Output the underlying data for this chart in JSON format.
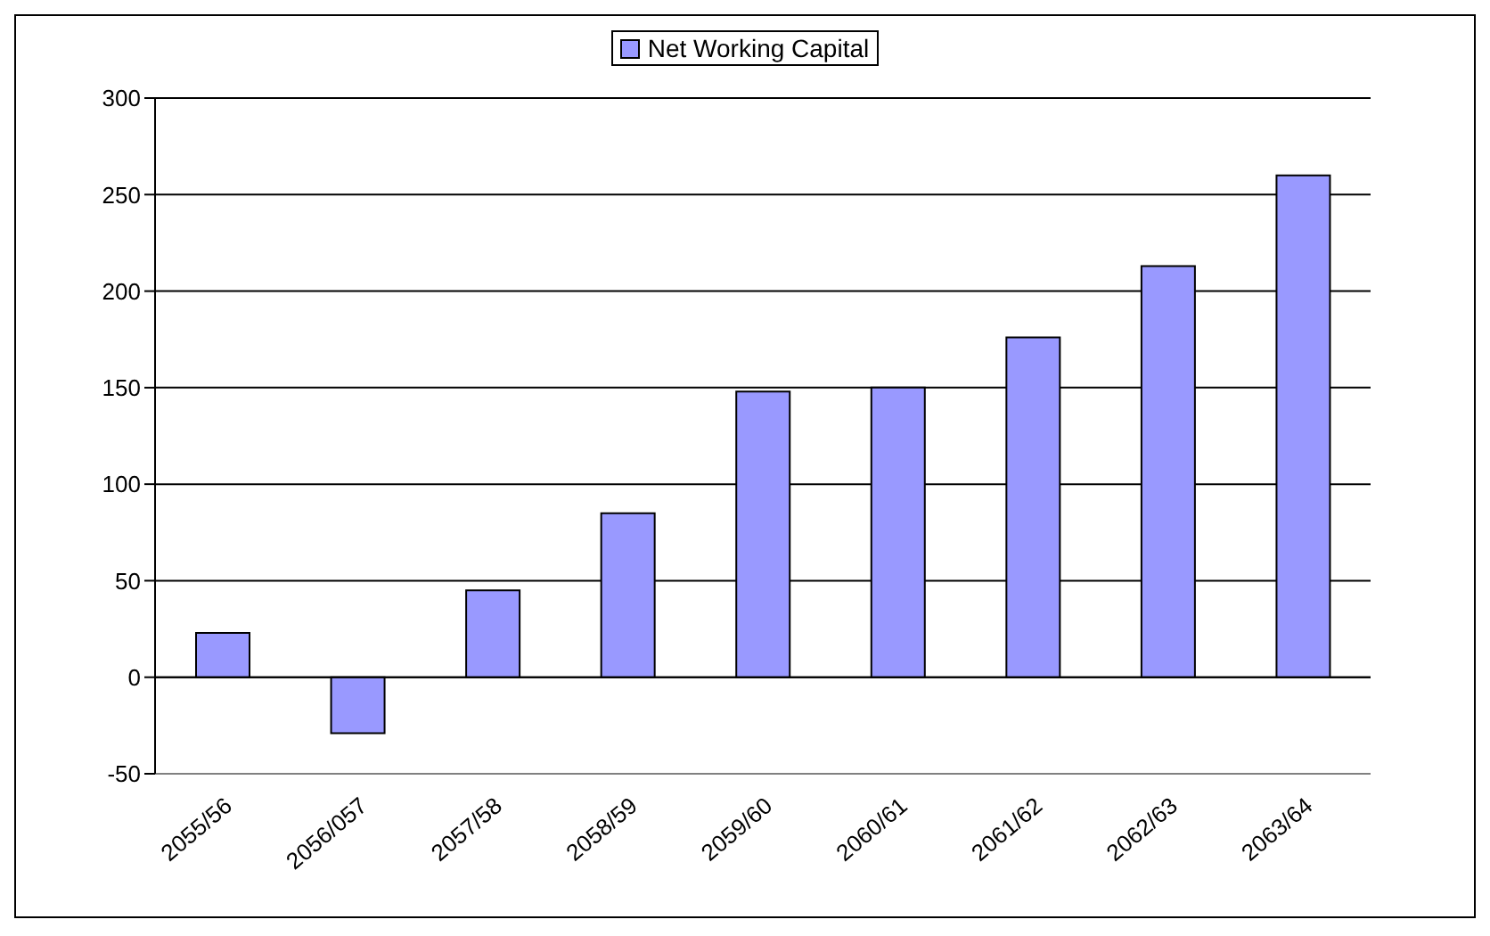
{
  "chart_data": {
    "type": "bar",
    "categories": [
      "2055/56",
      "2056/057",
      "2057/58",
      "2058/59",
      "2059/60",
      "2060/61",
      "2061/62",
      "2062/63",
      "2063/64"
    ],
    "series": [
      {
        "name": "Net Working Capital",
        "color": "#9999ff",
        "values": [
          23,
          -29,
          45,
          85,
          148,
          150,
          176,
          213,
          260
        ]
      }
    ],
    "ylim": [
      -50,
      300
    ],
    "yticks": [
      -50,
      0,
      50,
      100,
      150,
      200,
      250,
      300
    ],
    "grid": "y",
    "legend": "top"
  }
}
